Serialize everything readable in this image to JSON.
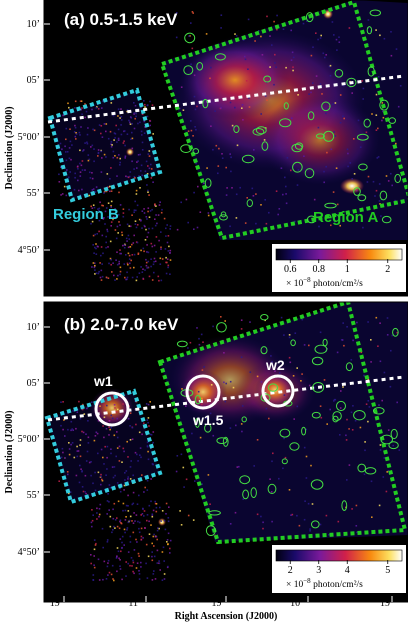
{
  "panel_a": {
    "label": "(a) 0.5-1.5 keV",
    "region_b_label": "Region B",
    "region_a_label": "Region A",
    "colorbar_ticks": [
      "0.6",
      "0.8",
      "1",
      "2"
    ],
    "colorbar_unit_prefix": "× 10",
    "colorbar_unit_exp": "−8",
    "colorbar_unit_suffix": " photon/cm²/s"
  },
  "panel_b": {
    "label": "(b) 2.0-7.0 keV",
    "source_labels": [
      "w1",
      "w1.5",
      "w2"
    ],
    "colorbar_ticks": [
      "2",
      "3",
      "4",
      "5"
    ],
    "colorbar_unit_prefix": "× 10",
    "colorbar_unit_exp": "−8",
    "colorbar_unit_suffix": " photon/cm²/s"
  },
  "axes": {
    "ylabel": "Declination (J2000)",
    "xlabel": "Right Ascension (J2000)",
    "yticks_a": [
      "10’",
      "05’",
      "5°00’",
      "55’",
      "4°50’"
    ],
    "yticks_b": [
      "10’",
      "05’",
      "5°00’",
      "55’",
      "4°50’"
    ],
    "xticks": [
      {
        "h": "19",
        "hs": "h",
        "m": "11",
        "ms": "m",
        "s": "",
        "ss": ""
      },
      {
        "h": "",
        "hs": "",
        "m": "11",
        "ms": "m",
        "s": "30.0",
        "ss": "s"
      },
      {
        "h": "19",
        "hs": "h",
        "m": "10",
        "ms": "m",
        "s": "",
        "ss": ""
      },
      {
        "h": "",
        "hs": "",
        "m": "10",
        "ms": "m",
        "s": "30.0",
        "ss": "s"
      },
      {
        "h": "19",
        "hs": "h",
        "m": "9",
        "ms": "m",
        "s": "",
        "ss": ""
      }
    ]
  },
  "colors": {
    "background": "#000000",
    "region_a": "#22cc22",
    "region_b": "#33ccdd",
    "galactic_plane": "#ffffff",
    "source_circle": "#ffffff",
    "point_source_ellipse": "#44dd44"
  }
}
